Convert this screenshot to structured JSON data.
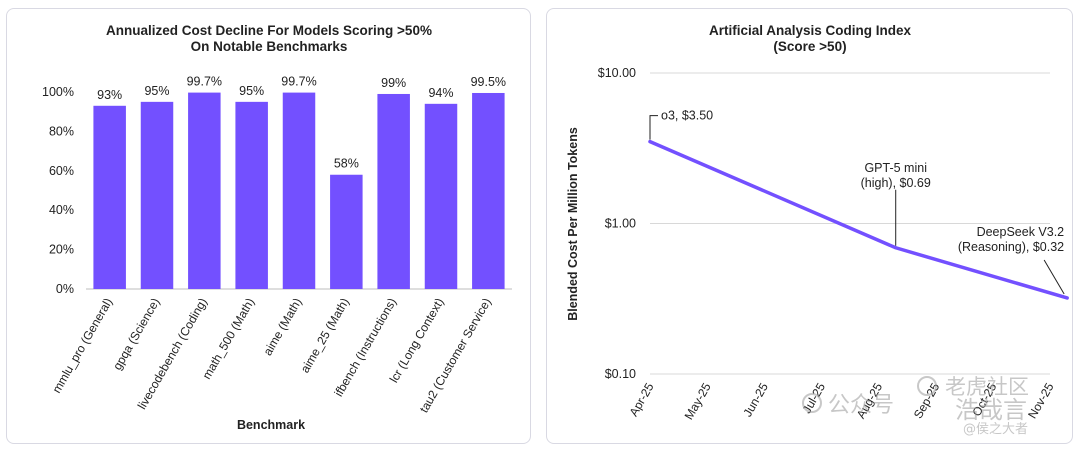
{
  "colors": {
    "bar": "#7350ff",
    "line": "#7350ff",
    "grid": "#d8d8d8",
    "text": "#222222"
  },
  "chart_data": [
    {
      "type": "bar",
      "title": [
        "Annualized Cost Decline For Models Scoring >50%",
        "On Notable Benchmarks"
      ],
      "xlabel": "Benchmark",
      "ylabel": "",
      "ylim": [
        0,
        100
      ],
      "yticks": [
        0,
        20,
        40,
        60,
        80,
        100
      ],
      "ytick_labels": [
        "0%",
        "20%",
        "40%",
        "60%",
        "80%",
        "100%"
      ],
      "categories": [
        "mmlu_pro (General)",
        "gpqa (Science)",
        "livecodebench (Coding)",
        "math_500 (Math)",
        "aime (Math)",
        "aime_25 (Math)",
        "ifbench (Instructions)",
        "lcr (Long Context)",
        "tau2 (Customer Service)"
      ],
      "values": [
        93,
        95,
        99.7,
        95,
        99.7,
        58,
        99,
        94,
        99.5
      ],
      "value_labels": [
        "93%",
        "95%",
        "99.7%",
        "95%",
        "99.7%",
        "58%",
        "99%",
        "94%",
        "99.5%"
      ]
    },
    {
      "type": "line",
      "title": [
        "Artificial Analysis Coding Index",
        "(Score >50)"
      ],
      "xlabel": "",
      "ylabel": "Blended Cost Per Million Tokens",
      "yscale": "log",
      "ylim": [
        0.1,
        10
      ],
      "yticks": [
        0.1,
        1,
        10
      ],
      "ytick_labels": [
        "$0.10",
        "$1.00",
        "$10.00"
      ],
      "xticks": [
        "Apr-25",
        "May-25",
        "Jun-25",
        "Jul-25",
        "Aug-25",
        "Sep-25",
        "Oct-25",
        "Nov-25"
      ],
      "x": [
        0,
        4.3,
        7.3
      ],
      "y": [
        3.5,
        0.69,
        0.32
      ],
      "annotations": [
        {
          "lines": [
            "o3,  $3.50"
          ]
        },
        {
          "lines": [
            "GPT-5 mini",
            "(high),  $0.69"
          ]
        },
        {
          "lines": [
            "DeepSeek V3.2",
            "(Reasoning),  $0.32"
          ]
        }
      ]
    }
  ],
  "watermark": {
    "text1": "公众号",
    "text2": "老虎社区",
    "text3": "浩哉言",
    "text4": "@侯之大者"
  }
}
